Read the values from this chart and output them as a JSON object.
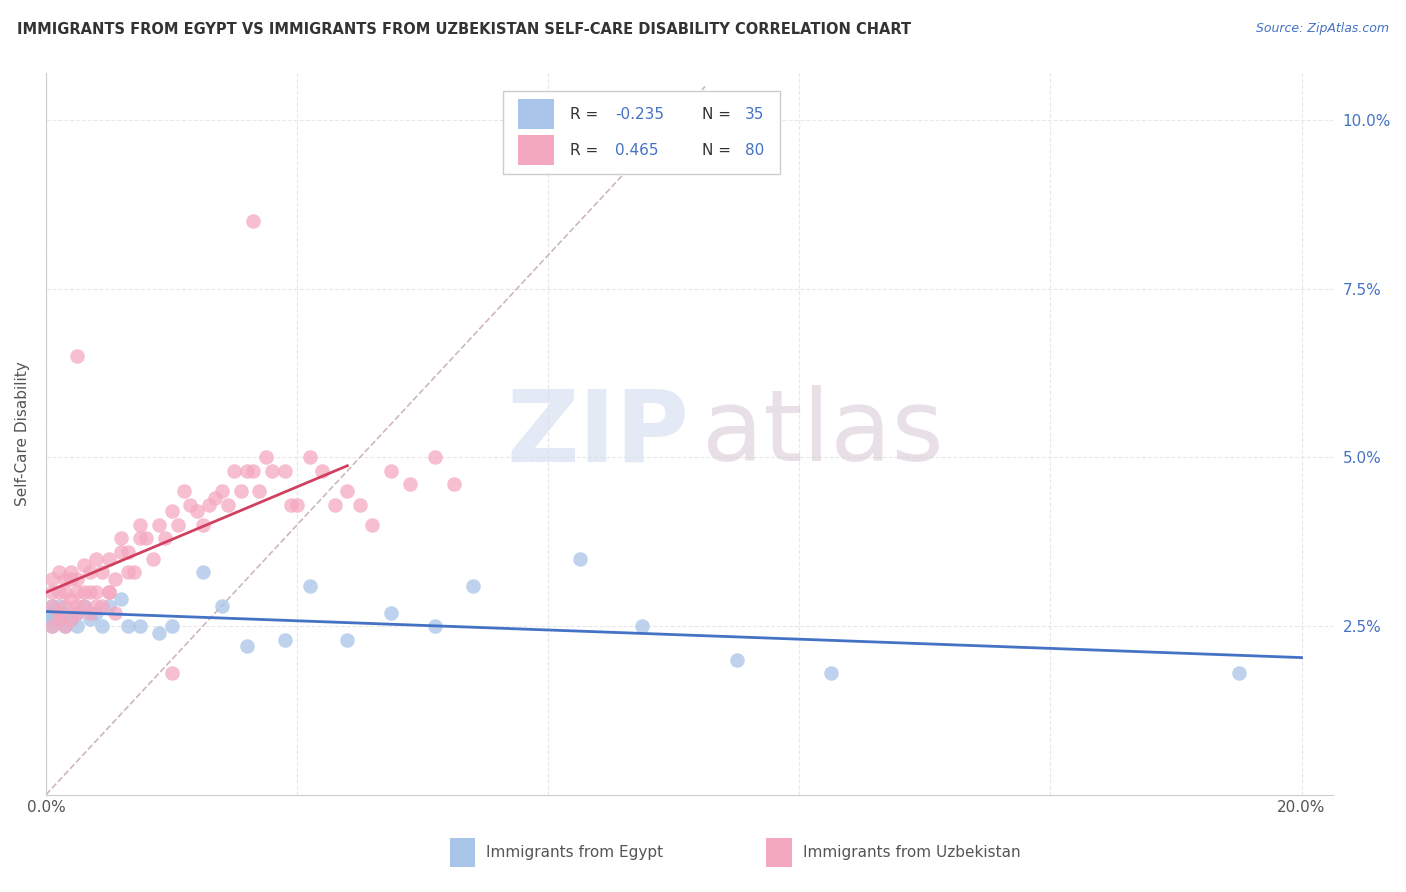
{
  "title": "IMMIGRANTS FROM EGYPT VS IMMIGRANTS FROM UZBEKISTAN SELF-CARE DISABILITY CORRELATION CHART",
  "source": "Source: ZipAtlas.com",
  "ylabel": "Self-Care Disability",
  "egypt_color": "#a8c4e8",
  "uzbekistan_color": "#f4a8c0",
  "egypt_line_color": "#4472c4",
  "uzbekistan_line_color": "#d04060",
  "diagonal_color": "#c8b0b8",
  "legend_egypt_R": "-0.235",
  "legend_egypt_N": "35",
  "legend_uzbekistan_R": "0.465",
  "legend_uzbekistan_N": "80",
  "r_color": "#4472c4",
  "n_color": "#4472c4",
  "background_color": "#ffffff",
  "grid_color": "#e8e8e8",
  "egypt_x": [
    0.0005,
    0.001,
    0.001,
    0.001,
    0.002,
    0.002,
    0.003,
    0.003,
    0.004,
    0.005,
    0.005,
    0.006,
    0.007,
    0.008,
    0.009,
    0.01,
    0.012,
    0.013,
    0.015,
    0.018,
    0.02,
    0.025,
    0.028,
    0.032,
    0.038,
    0.042,
    0.048,
    0.055,
    0.062,
    0.068,
    0.085,
    0.095,
    0.11,
    0.125,
    0.19
  ],
  "egypt_y": [
    0.027,
    0.026,
    0.028,
    0.025,
    0.026,
    0.028,
    0.025,
    0.027,
    0.026,
    0.027,
    0.025,
    0.028,
    0.026,
    0.027,
    0.025,
    0.028,
    0.029,
    0.025,
    0.025,
    0.024,
    0.025,
    0.033,
    0.028,
    0.022,
    0.023,
    0.031,
    0.023,
    0.027,
    0.025,
    0.031,
    0.035,
    0.025,
    0.02,
    0.018,
    0.018
  ],
  "uzb_x": [
    0.001,
    0.001,
    0.001,
    0.001,
    0.002,
    0.002,
    0.002,
    0.002,
    0.003,
    0.003,
    0.003,
    0.003,
    0.004,
    0.004,
    0.004,
    0.004,
    0.005,
    0.005,
    0.005,
    0.005,
    0.006,
    0.006,
    0.006,
    0.007,
    0.007,
    0.007,
    0.008,
    0.008,
    0.008,
    0.009,
    0.009,
    0.01,
    0.01,
    0.011,
    0.011,
    0.012,
    0.012,
    0.013,
    0.013,
    0.014,
    0.015,
    0.015,
    0.016,
    0.017,
    0.018,
    0.019,
    0.02,
    0.021,
    0.022,
    0.023,
    0.024,
    0.025,
    0.026,
    0.027,
    0.028,
    0.029,
    0.03,
    0.031,
    0.032,
    0.033,
    0.034,
    0.035,
    0.036,
    0.038,
    0.039,
    0.04,
    0.042,
    0.044,
    0.046,
    0.048,
    0.05,
    0.052,
    0.055,
    0.058,
    0.062,
    0.065,
    0.005,
    0.033,
    0.01,
    0.02
  ],
  "uzb_y": [
    0.028,
    0.03,
    0.032,
    0.025,
    0.027,
    0.03,
    0.033,
    0.026,
    0.028,
    0.032,
    0.025,
    0.03,
    0.029,
    0.032,
    0.026,
    0.033,
    0.03,
    0.027,
    0.028,
    0.032,
    0.028,
    0.034,
    0.03,
    0.03,
    0.027,
    0.033,
    0.035,
    0.028,
    0.03,
    0.033,
    0.028,
    0.03,
    0.035,
    0.027,
    0.032,
    0.038,
    0.036,
    0.033,
    0.036,
    0.033,
    0.04,
    0.038,
    0.038,
    0.035,
    0.04,
    0.038,
    0.042,
    0.04,
    0.045,
    0.043,
    0.042,
    0.04,
    0.043,
    0.044,
    0.045,
    0.043,
    0.048,
    0.045,
    0.048,
    0.048,
    0.045,
    0.05,
    0.048,
    0.048,
    0.043,
    0.043,
    0.05,
    0.048,
    0.043,
    0.045,
    0.043,
    0.04,
    0.048,
    0.046,
    0.05,
    0.046,
    0.065,
    0.085,
    0.03,
    0.018
  ],
  "xlim": [
    0.0,
    0.205
  ],
  "ylim": [
    0.0,
    0.107
  ],
  "xtick_pos": [
    0.0,
    0.04,
    0.08,
    0.12,
    0.16,
    0.2
  ],
  "xtick_labels": [
    "0.0%",
    "",
    "",
    "",
    "",
    "20.0%"
  ],
  "ytick_pos": [
    0.025,
    0.05,
    0.075,
    0.1
  ],
  "ytick_labels": [
    "2.5%",
    "5.0%",
    "7.5%",
    "10.0%"
  ]
}
